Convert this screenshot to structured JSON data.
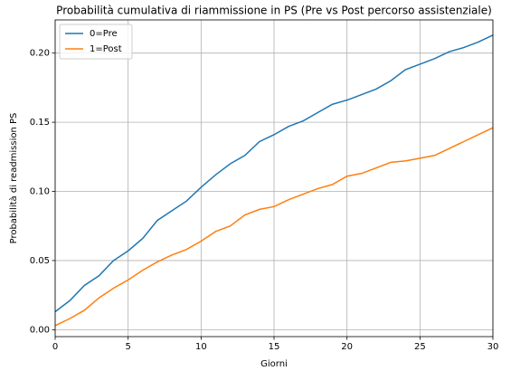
{
  "chart_data": {
    "type": "line",
    "title": "Probabilità cumulativa di riammissione in PS (Pre vs Post percorso assistenziale)",
    "xlabel": "Giorni",
    "ylabel": "Probabilità di readmission PS",
    "x": [
      0,
      1,
      2,
      3,
      4,
      5,
      6,
      7,
      8,
      9,
      10,
      11,
      12,
      13,
      14,
      15,
      16,
      17,
      18,
      19,
      20,
      21,
      22,
      23,
      24,
      25,
      26,
      27,
      28,
      29,
      30
    ],
    "series": [
      {
        "name": "0=Pre",
        "color": "#1f77b4",
        "values": [
          0.013,
          0.021,
          0.032,
          0.039,
          0.05,
          0.057,
          0.066,
          0.079,
          0.086,
          0.093,
          0.103,
          0.112,
          0.12,
          0.126,
          0.136,
          0.141,
          0.147,
          0.151,
          0.157,
          0.163,
          0.166,
          0.17,
          0.174,
          0.18,
          0.188,
          0.192,
          0.196,
          0.201,
          0.204,
          0.208,
          0.213
        ]
      },
      {
        "name": "1=Post",
        "color": "#ff7f0e",
        "values": [
          0.003,
          0.008,
          0.014,
          0.023,
          0.03,
          0.036,
          0.043,
          0.049,
          0.054,
          0.058,
          0.064,
          0.071,
          0.075,
          0.083,
          0.087,
          0.089,
          0.094,
          0.098,
          0.102,
          0.105,
          0.111,
          0.113,
          0.117,
          0.121,
          0.122,
          0.124,
          0.126,
          0.131,
          0.136,
          0.141,
          0.146
        ]
      }
    ],
    "xlim": [
      0,
      30
    ],
    "xticks": [
      0,
      5,
      10,
      15,
      20,
      25,
      30
    ],
    "ylim": [
      -0.005,
      0.224
    ],
    "yticks": [
      {
        "value": 0,
        "label": "0.00"
      },
      {
        "value": 0.05,
        "label": "0.05"
      },
      {
        "value": 0.1,
        "label": "0.10"
      },
      {
        "value": 0.15,
        "label": "0.15"
      },
      {
        "value": 0.2,
        "label": "0.20"
      }
    ],
    "grid": true,
    "legend": "upper left"
  }
}
